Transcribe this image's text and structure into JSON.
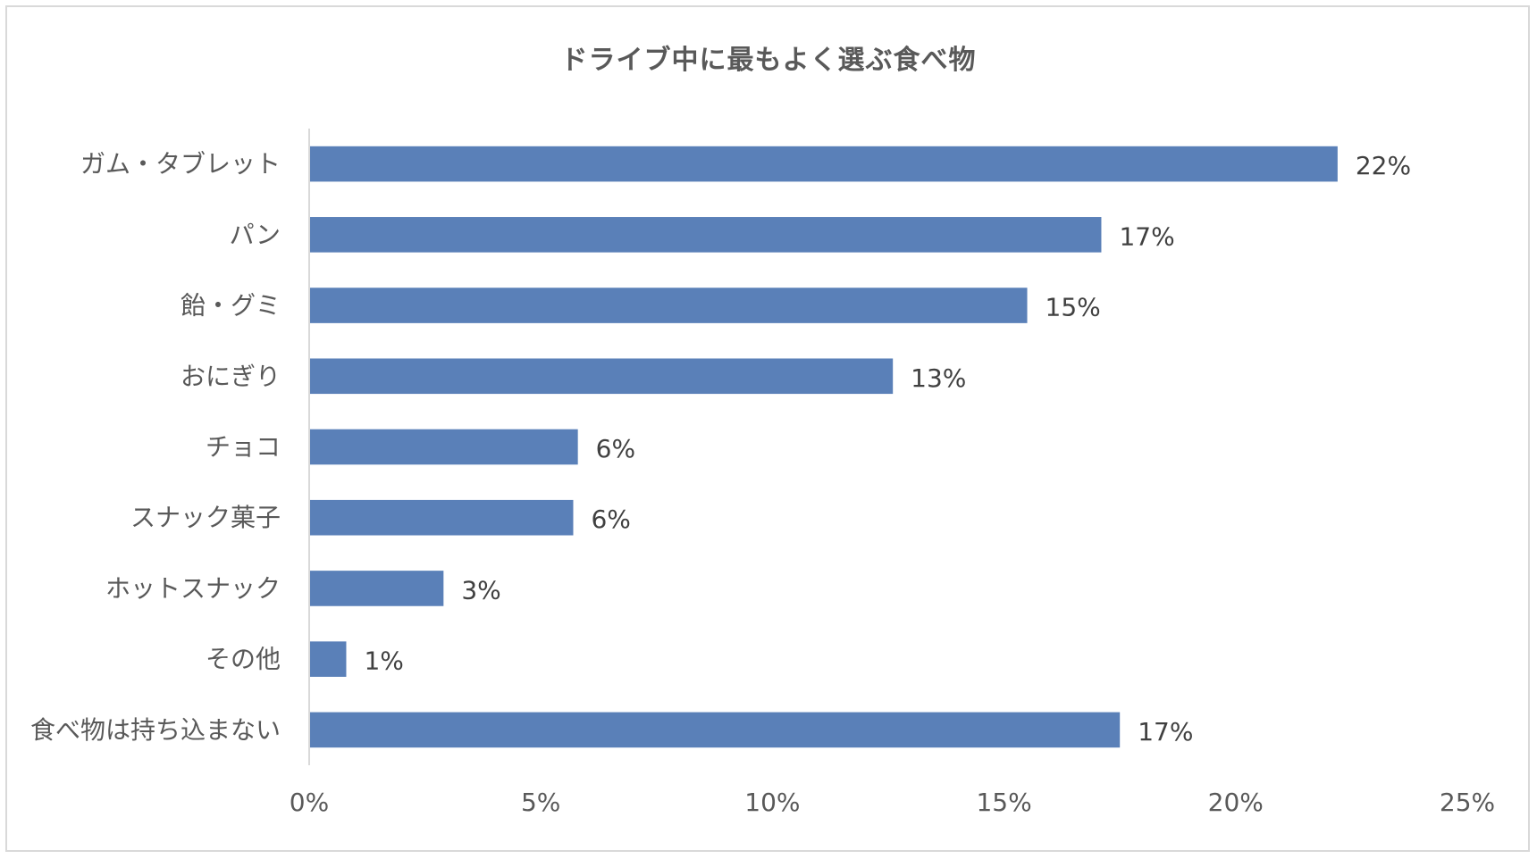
{
  "chart_data": {
    "type": "bar",
    "orientation": "horizontal",
    "title": "ドライブ中に最もよく選ぶ食べ物",
    "categories": [
      "ガム・タブレット",
      "パン",
      "飴・グミ",
      "おにぎり",
      "チョコ",
      "スナック菓子",
      "ホットスナック",
      "その他",
      "食べ物は持ち込まない"
    ],
    "values": [
      22.2,
      17.1,
      15.5,
      12.6,
      5.8,
      5.7,
      2.9,
      0.8,
      17.5
    ],
    "data_labels": [
      "22%",
      "17%",
      "15%",
      "13%",
      "6%",
      "6%",
      "3%",
      "1%",
      "17%"
    ],
    "xlim": [
      0,
      25
    ],
    "x_ticks": [
      0,
      5,
      10,
      15,
      20,
      25
    ],
    "x_tick_labels": [
      "0%",
      "5%",
      "10%",
      "15%",
      "20%",
      "25%"
    ],
    "xlabel": "",
    "ylabel": "",
    "grid": false,
    "legend": "none",
    "bar_color": "#5a80b8"
  }
}
